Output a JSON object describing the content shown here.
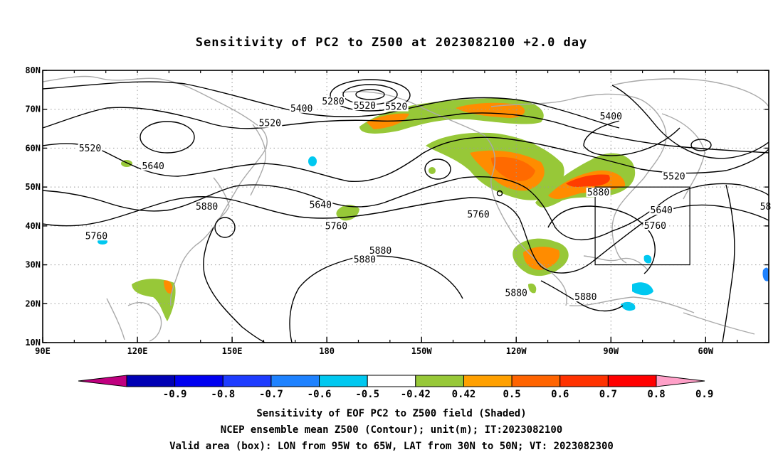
{
  "title": "Sensitivity of PC2 to Z500 at 2023082100 +2.0 day",
  "lat_ticks": [
    {
      "value": 80,
      "label": "80N"
    },
    {
      "value": 70,
      "label": "70N"
    },
    {
      "value": 60,
      "label": "60N"
    },
    {
      "value": 50,
      "label": "50N"
    },
    {
      "value": 40,
      "label": "40N"
    },
    {
      "value": 30,
      "label": "30N"
    },
    {
      "value": 20,
      "label": "20N"
    },
    {
      "value": 10,
      "label": "10N"
    }
  ],
  "lon_ticks": [
    {
      "value": 90,
      "label": "90E"
    },
    {
      "value": 120,
      "label": "120E"
    },
    {
      "value": 150,
      "label": "150E"
    },
    {
      "value": 180,
      "label": "180"
    },
    {
      "value": 210,
      "label": "150W"
    },
    {
      "value": 240,
      "label": "120W"
    },
    {
      "value": 270,
      "label": "90W"
    },
    {
      "value": 300,
      "label": "60W"
    }
  ],
  "map_extent": {
    "lon_min": 90,
    "lon_max": 320,
    "lat_min": 10,
    "lat_max": 80
  },
  "valid_box": {
    "lon_min": 265,
    "lon_max": 295,
    "lat_min": 30,
    "lat_max": 50
  },
  "contour_labels": [
    {
      "text": "5280",
      "lon": 182,
      "lat": 71.6
    },
    {
      "text": "5400",
      "lon": 172,
      "lat": 69.8
    },
    {
      "text": "5520",
      "lon": 192,
      "lat": 70.5
    },
    {
      "text": "5520",
      "lon": 202,
      "lat": 70.2
    },
    {
      "text": "5520",
      "lon": 162,
      "lat": 66.0
    },
    {
      "text": "5400",
      "lon": 270,
      "lat": 67.8
    },
    {
      "text": "5520",
      "lon": 105,
      "lat": 59.5
    },
    {
      "text": "5640",
      "lon": 125,
      "lat": 55.0
    },
    {
      "text": "5640",
      "lon": 178,
      "lat": 45.0
    },
    {
      "text": "5880",
      "lon": 142,
      "lat": 44.5
    },
    {
      "text": "5760",
      "lon": 107,
      "lat": 37.0
    },
    {
      "text": "5760",
      "lon": 183,
      "lat": 39.5
    },
    {
      "text": "5760",
      "lon": 228,
      "lat": 42.5
    },
    {
      "text": "5880",
      "lon": 266,
      "lat": 48.2
    },
    {
      "text": "5520",
      "lon": 290,
      "lat": 52.3
    },
    {
      "text": "5640",
      "lon": 286,
      "lat": 43.6
    },
    {
      "text": "5760",
      "lon": 284,
      "lat": 39.6
    },
    {
      "text": "58",
      "lon": 319,
      "lat": 44.5
    },
    {
      "text": "5880",
      "lon": 192,
      "lat": 30.9
    },
    {
      "text": "5880",
      "lon": 197,
      "lat": 33.2
    },
    {
      "text": "5880",
      "lon": 240,
      "lat": 22.3
    },
    {
      "text": "5880",
      "lon": 262,
      "lat": 21.3
    }
  ],
  "colorbar": {
    "colors": [
      "#c0007f",
      "#0000b4",
      "#0000f0",
      "#1e3cff",
      "#1e82ff",
      "#00c8f0",
      "#ffffff",
      "#97c838",
      "#ffa000",
      "#ff6400",
      "#ff3200",
      "#ff0000",
      "#ffa0c8"
    ],
    "tick_labels": [
      "-0.9",
      "-0.8",
      "-0.7",
      "-0.6",
      "-0.5",
      "-0.42",
      "0.42",
      "0.5",
      "0.6",
      "0.7",
      "0.8",
      "0.9"
    ]
  },
  "shading_colors": {
    "green": "#97c838",
    "orange": "#ff8c00",
    "darkorange": "#ff6a00",
    "red": "#ff3c00",
    "cyan": "#00c8f0",
    "blue": "#1e82ff"
  },
  "captions": {
    "line1": "Sensitivity of EOF PC2 to Z500 field (Shaded)",
    "line2": "NCEP ensemble mean Z500 (Contour); unit(m); IT:2023082100",
    "line3": "Valid area (box): LON from 95W to 65W, LAT from 30N to 50N; VT: 2023082300"
  }
}
